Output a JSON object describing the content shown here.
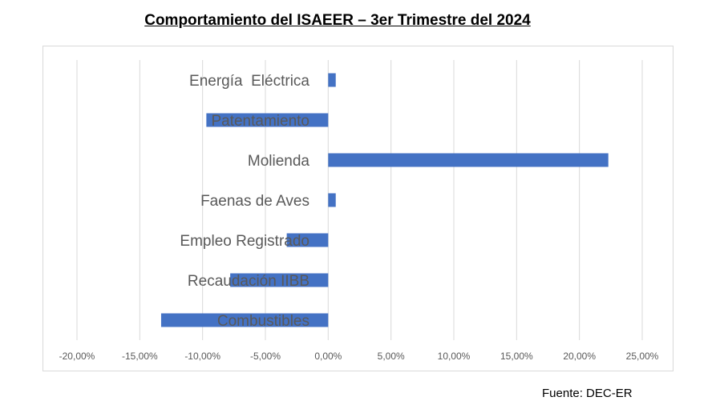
{
  "chart_data": {
    "type": "bar",
    "orientation": "horizontal",
    "title": "Comportamiento del ISAEER – 3er Trimestre del 2024",
    "categories": [
      "Energía  Eléctrica",
      "Patentamiento",
      "Molienda",
      "Faenas de Aves",
      "Empleo Registrado",
      "Recaudación IIBB",
      "Combustibles"
    ],
    "values": [
      0.6,
      -9.7,
      22.3,
      0.6,
      -3.3,
      -7.8,
      -13.3
    ],
    "unit": "%",
    "xlim": [
      -20,
      25
    ],
    "x_ticks": [
      -20,
      -15,
      -10,
      -5,
      0,
      5,
      10,
      15,
      20,
      25
    ],
    "x_tick_labels": [
      "-20,00%",
      "-15,00%",
      "-10,00%",
      "-5,00%",
      "0,00%",
      "5,00%",
      "10,00%",
      "15,00%",
      "20,00%",
      "25,00%"
    ],
    "grid": "vertical",
    "bar_color": "#4472C4",
    "label_color": "#595959",
    "legend": "none"
  },
  "source": "Fuente: DEC-ER"
}
